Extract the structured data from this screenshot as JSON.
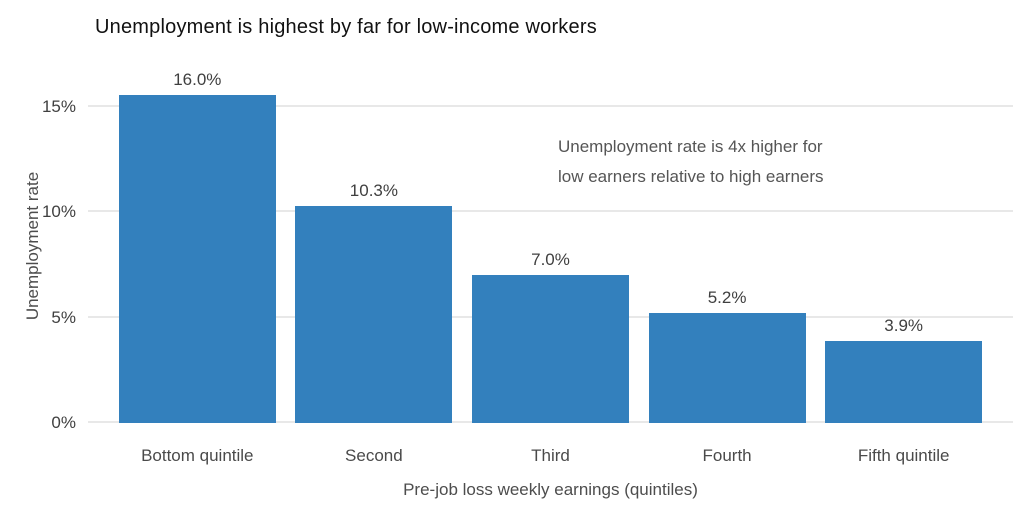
{
  "chart_data": {
    "type": "bar",
    "title": "Unemployment is highest by far for low-income workers",
    "xlabel": "Pre-job loss weekly earnings (quintiles)",
    "ylabel": "Unemployment rate",
    "categories": [
      "Bottom quintile",
      "Second",
      "Third",
      "Fourth",
      "Fifth quintile"
    ],
    "values": [
      16.0,
      10.3,
      7.0,
      5.2,
      3.9
    ],
    "value_labels": [
      "16.0%",
      "10.3%",
      "7.0%",
      "5.2%",
      "3.9%"
    ],
    "yticks": [
      {
        "value": 0,
        "label": "0%"
      },
      {
        "value": 5,
        "label": "5%"
      },
      {
        "value": 10,
        "label": "10%"
      },
      {
        "value": 15,
        "label": "15%"
      }
    ],
    "ylim": [
      0,
      16.73
    ],
    "grid": "horizontal",
    "legend": "none",
    "bar_color": "#3380bd",
    "annotation": {
      "line1": "Unemployment rate is 4x higher for",
      "line2": "low earners relative to high earners"
    }
  },
  "colors": {
    "background": "#ffffff",
    "bar": "#3380bd",
    "gridline": "#e8e8e8",
    "title_text": "#111111",
    "tick_text": "#404040",
    "label_text": "#4a4a4a",
    "annotation_text": "#555555"
  }
}
